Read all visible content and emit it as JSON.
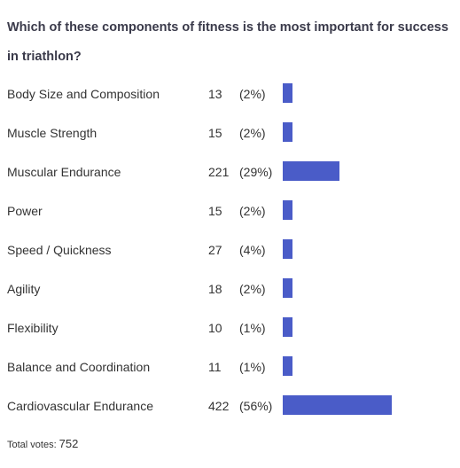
{
  "chart_data": {
    "type": "bar",
    "orientation": "horizontal",
    "title": "Which of these components of fitness is the most important for success in triathlon?",
    "categories": [
      "Body Size and Composition",
      "Muscle Strength",
      "Muscular Endurance",
      "Power",
      "Speed / Quickness",
      "Agility",
      "Flexibility",
      "Balance and Coordination",
      "Cardiovascular Endurance"
    ],
    "values": [
      13,
      15,
      221,
      15,
      27,
      18,
      10,
      11,
      422
    ],
    "percent_labels": [
      "(2%)",
      "(2%)",
      "(29%)",
      "(2%)",
      "(4%)",
      "(2%)",
      "(1%)",
      "(1%)",
      "(56%)"
    ],
    "percents": [
      2,
      2,
      29,
      2,
      4,
      2,
      1,
      1,
      56
    ],
    "bar_color": "#4a5cc8",
    "grid": false
  },
  "footer": {
    "total_label": "Total votes:",
    "total_value": "752"
  }
}
